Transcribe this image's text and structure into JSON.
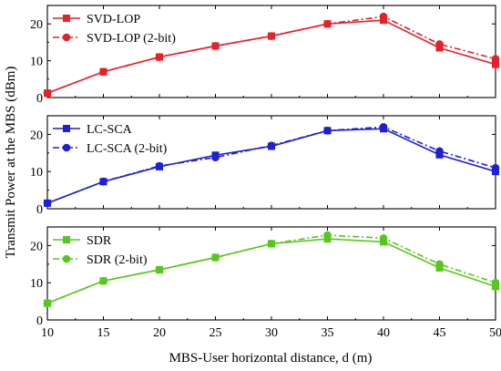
{
  "chart_data": [
    {
      "type": "line",
      "x": [
        10,
        15,
        20,
        25,
        30,
        35,
        40,
        45,
        50
      ],
      "ylim": [
        0,
        25
      ],
      "yticks": [
        0,
        10,
        20
      ],
      "legend": "top-left",
      "series": [
        {
          "name": "SVD-LOP",
          "values": [
            1.2,
            7,
            11,
            14,
            16.7,
            20,
            21,
            13.5,
            9
          ],
          "color": "#e8202a",
          "marker": "square",
          "dash": "solid"
        },
        {
          "name": "SVD-LOP (2-bit)",
          "values": [
            1.2,
            7,
            11,
            14,
            16.7,
            20,
            22,
            14.5,
            10.5
          ],
          "color": "#e8202a",
          "marker": "circle",
          "dash": "dashdot"
        }
      ]
    },
    {
      "type": "line",
      "x": [
        10,
        15,
        20,
        25,
        30,
        35,
        40,
        45,
        50
      ],
      "ylim": [
        0,
        25
      ],
      "yticks": [
        0,
        10,
        20
      ],
      "legend": "top-left",
      "series": [
        {
          "name": "LC-SCA",
          "values": [
            1.5,
            7.3,
            11.3,
            14.4,
            16.8,
            21,
            21.5,
            14.5,
            10
          ],
          "color": "#1f1fd6",
          "marker": "square",
          "dash": "solid"
        },
        {
          "name": "LC-SCA (2-bit)",
          "values": [
            1.5,
            7.3,
            11.5,
            13.8,
            17,
            21,
            22,
            15.5,
            11
          ],
          "color": "#1f1fd6",
          "marker": "circle",
          "dash": "dashdot"
        }
      ]
    },
    {
      "type": "line",
      "x": [
        10,
        15,
        20,
        25,
        30,
        35,
        40,
        45,
        50
      ],
      "ylim": [
        0,
        25
      ],
      "yticks": [
        0,
        10,
        20
      ],
      "legend": "top-left",
      "series": [
        {
          "name": "SDR",
          "values": [
            4.5,
            10.5,
            13.5,
            16.8,
            20.5,
            21.8,
            21,
            14,
            9
          ],
          "color": "#55c81c",
          "marker": "square",
          "dash": "solid"
        },
        {
          "name": "SDR (2-bit)",
          "values": [
            4.5,
            10.5,
            13.5,
            16.8,
            20.5,
            22.8,
            22,
            15,
            10
          ],
          "color": "#55c81c",
          "marker": "circle",
          "dash": "dashdot"
        }
      ]
    }
  ],
  "xticks": [
    10,
    15,
    20,
    25,
    30,
    35,
    40,
    45,
    50
  ],
  "xlim": [
    10,
    50
  ],
  "xlabel": "MBS-User horizontal distance, d (m)",
  "ylabel": "Transmit Power at the MBS (dBm)"
}
